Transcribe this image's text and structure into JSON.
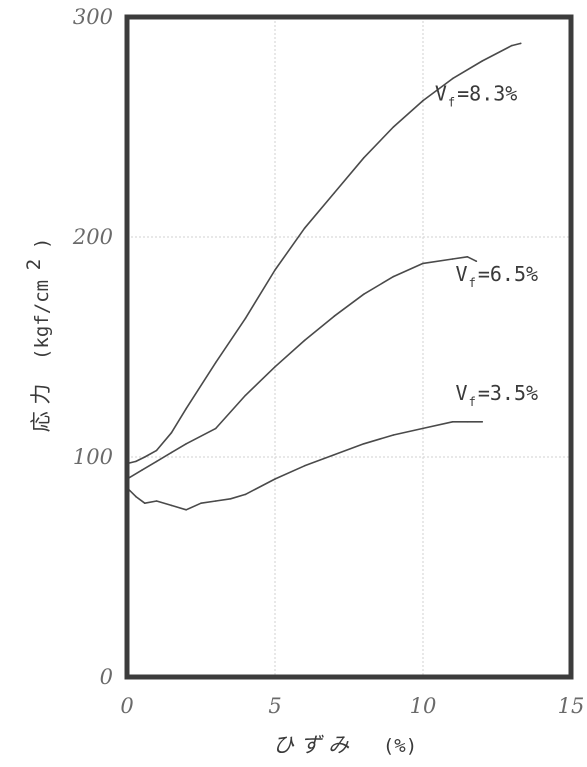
{
  "chart_data": {
    "type": "line",
    "title": "",
    "xlabel": "ひ ず み (%)",
    "xlabel_parts": {
      "word": "ひ ず み",
      "unit": "(%)"
    },
    "ylabel": "応 力 (kgf/cm2)",
    "ylabel_parts": {
      "word": "応 力",
      "unit": "(kgf/cm",
      "sup": "2",
      "close": ")"
    },
    "xlim": [
      0,
      15
    ],
    "ylim": [
      0,
      300
    ],
    "x_ticks": [
      "0",
      "5",
      "10",
      "15"
    ],
    "y_ticks": [
      "0",
      "100",
      "200",
      "300"
    ],
    "grid": true,
    "legend": "inline labels at line ends",
    "colors": {
      "line": "#4a4a4a",
      "frame": "#3c3c3c",
      "grid": "#d2d2d2"
    },
    "series": [
      {
        "name": "Vf=8.3%",
        "label_main": "V",
        "label_sub": "f",
        "label_rest": "=8.3%",
        "x": [
          0,
          0.3,
          0.6,
          1.0,
          1.5,
          2.0,
          3.0,
          4.0,
          5.0,
          6.0,
          7.0,
          8.0,
          9.0,
          10.0,
          11.0,
          12.0,
          13.0,
          13.3
        ],
        "y": [
          97,
          98,
          100,
          103,
          111,
          122,
          143,
          163,
          185,
          204,
          220,
          236,
          250,
          262,
          272,
          280,
          287,
          288
        ]
      },
      {
        "name": "Vf=6.5%",
        "label_main": "V",
        "label_sub": "f",
        "label_rest": "=6.5%",
        "x": [
          0,
          0.5,
          1.0,
          1.5,
          2.0,
          3.0,
          4.0,
          5.0,
          6.0,
          7.0,
          8.0,
          9.0,
          10.0,
          11.0,
          11.5,
          11.8
        ],
        "y": [
          90,
          94,
          98,
          102,
          106,
          113,
          128,
          141,
          153,
          164,
          174,
          182,
          188,
          190,
          191,
          189
        ]
      },
      {
        "name": "Vf=3.5%",
        "label_main": "V",
        "label_sub": "f",
        "label_rest": "=3.5%",
        "x": [
          0,
          0.3,
          0.6,
          1.0,
          1.5,
          2.0,
          2.5,
          3.0,
          3.5,
          4.0,
          5.0,
          6.0,
          7.0,
          8.0,
          9.0,
          10.0,
          11.0,
          11.5,
          12.0
        ],
        "y": [
          86,
          82,
          79,
          80,
          78,
          76,
          79,
          80,
          81,
          83,
          90,
          96,
          101,
          106,
          110,
          113,
          116,
          116,
          116
        ]
      }
    ]
  }
}
